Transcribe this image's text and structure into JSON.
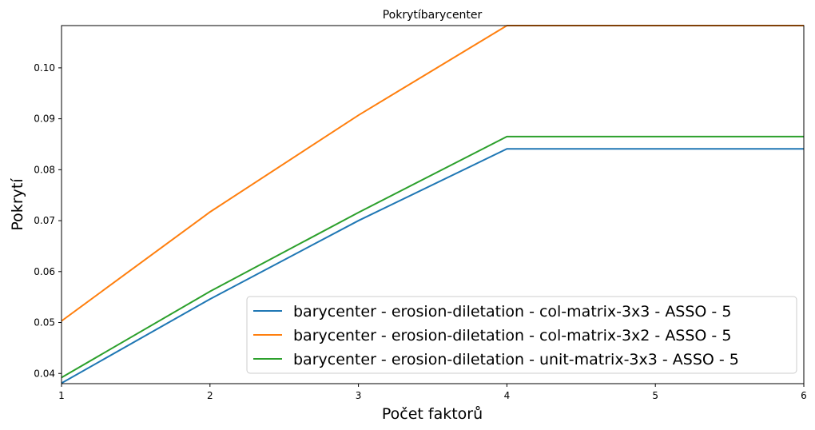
{
  "chart_data": {
    "type": "line",
    "title": "Pokrytíbarycenter",
    "xlabel": "Počet faktorů",
    "ylabel": "Pokrytí",
    "xlim": [
      1,
      6
    ],
    "ylim": [
      0.038,
      0.1083
    ],
    "x": [
      1,
      2,
      3,
      4,
      5,
      6
    ],
    "xticks": [
      "1",
      "2",
      "3",
      "4",
      "5",
      "6"
    ],
    "yticks": [
      "0.04",
      "0.05",
      "0.06",
      "0.07",
      "0.08",
      "0.09",
      "0.10"
    ],
    "ytick_values": [
      0.04,
      0.05,
      0.06,
      0.07,
      0.08,
      0.09,
      0.1
    ],
    "grid": false,
    "legend_position": "lower-right",
    "series": [
      {
        "name": "barycenter - erosion-diletation - col-matrix-3x3 - ASSO - 5",
        "color": "#1f77b4",
        "values": [
          0.0381,
          0.0546,
          0.07,
          0.0841,
          0.0841,
          0.0841
        ]
      },
      {
        "name": "barycenter - erosion-diletation - col-matrix-3x2 - ASSO - 5",
        "color": "#ff7f0e",
        "values": [
          0.0503,
          0.0717,
          0.0907,
          0.1083,
          0.1083,
          0.1083
        ]
      },
      {
        "name": "barycenter - erosion-diletation - unit-matrix-3x3 - ASSO - 5",
        "color": "#2ca02c",
        "values": [
          0.0392,
          0.0561,
          0.0716,
          0.0865,
          0.0865,
          0.0865
        ]
      }
    ]
  }
}
